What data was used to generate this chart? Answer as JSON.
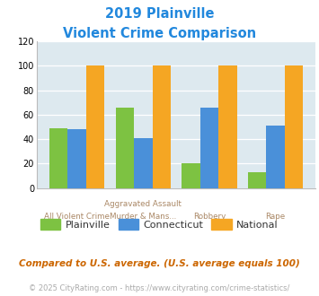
{
  "title_line1": "2019 Plainville",
  "title_line2": "Violent Crime Comparison",
  "series": {
    "Plainville": [
      49,
      66,
      20,
      13
    ],
    "Connecticut": [
      48,
      41,
      66,
      51
    ],
    "National": [
      100,
      100,
      100,
      100
    ]
  },
  "colors": {
    "Plainville": "#7dc242",
    "Connecticut": "#4a90d9",
    "National": "#f5a623"
  },
  "ylim": [
    0,
    120
  ],
  "yticks": [
    0,
    20,
    40,
    60,
    80,
    100,
    120
  ],
  "plot_bg": "#dde9ef",
  "title_color": "#2288dd",
  "xlabel_top": [
    "",
    "Aggravated Assault",
    "",
    ""
  ],
  "xlabel_bottom": [
    "All Violent Crime",
    "Murder & Mans...",
    "Robbery",
    "Rape"
  ],
  "footnote1": "Compared to U.S. average. (U.S. average equals 100)",
  "footnote2": "© 2025 CityRating.com - https://www.cityrating.com/crime-statistics/",
  "footnote1_color": "#cc6600",
  "footnote2_color": "#aaaaaa"
}
